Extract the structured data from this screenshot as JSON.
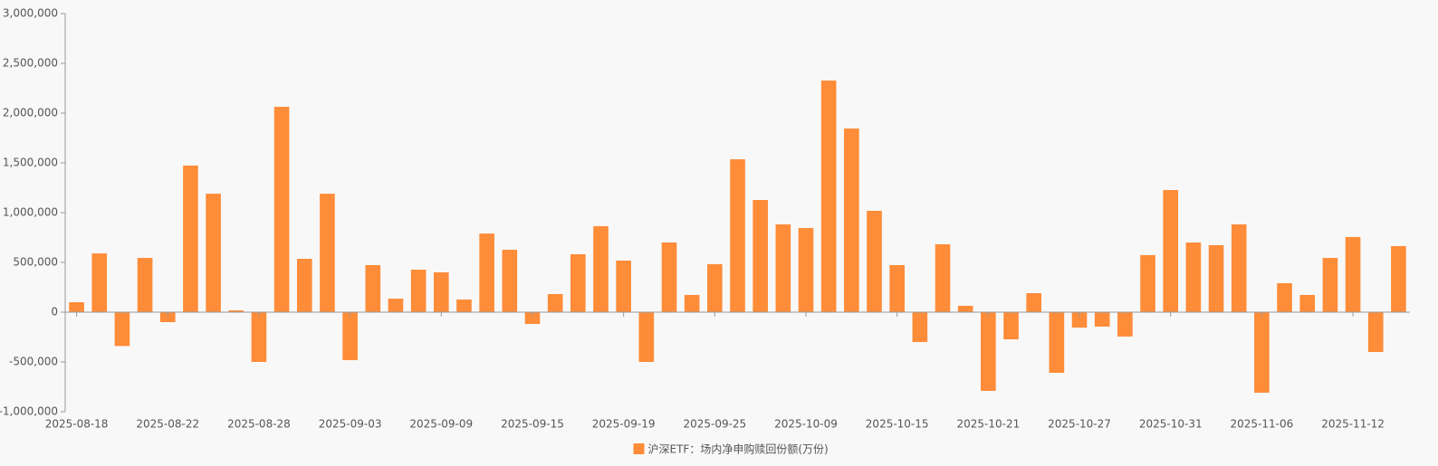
{
  "chart_data": {
    "type": "bar",
    "categories": [
      "2025-08-18",
      null,
      null,
      null,
      "2025-08-22",
      null,
      null,
      null,
      "2025-08-28",
      null,
      null,
      null,
      "2025-09-03",
      null,
      null,
      null,
      "2025-09-09",
      null,
      null,
      null,
      "2025-09-15",
      null,
      null,
      null,
      "2025-09-19",
      null,
      null,
      null,
      "2025-09-25",
      null,
      null,
      null,
      "2025-10-09",
      null,
      null,
      null,
      "2025-10-15",
      null,
      null,
      null,
      "2025-10-21",
      null,
      null,
      null,
      "2025-10-27",
      null,
      null,
      null,
      "2025-10-31",
      null,
      null,
      null,
      "2025-11-06",
      null,
      null,
      null,
      "2025-11-12",
      null,
      null
    ],
    "series": [
      {
        "name": "沪深ETF：场内净申购赎回份额(万份)",
        "color": "#ff8c38",
        "values": [
          100000,
          590000,
          -340000,
          545000,
          -100000,
          1473000,
          1190000,
          18000,
          -500000,
          2063000,
          536000,
          1190000,
          -482000,
          473000,
          136000,
          427000,
          400000,
          127000,
          790000,
          627000,
          -118000,
          182000,
          582000,
          864000,
          518000,
          -500000,
          700000,
          173000,
          482000,
          1536000,
          1127000,
          882000,
          845000,
          2327000,
          1845000,
          1018000,
          473000,
          -300000,
          682000,
          64000,
          -791000,
          -273000,
          191000,
          -609000,
          -155000,
          -145000,
          -245000,
          573000,
          1227000,
          700000,
          673000,
          882000,
          -809000,
          291000,
          173000,
          545000,
          755000,
          -400000,
          664000
        ]
      }
    ],
    "ylim": [
      -1000000,
      3000000
    ],
    "yticks": [
      {
        "value": -1000000,
        "label": "-1,000,000"
      },
      {
        "value": -500000,
        "label": "-500,000"
      },
      0,
      {
        "value": 500000,
        "label": "500,000"
      },
      {
        "value": 1000000,
        "label": "1,000,000"
      },
      {
        "value": 1500000,
        "label": "1,500,000"
      },
      {
        "value": 2000000,
        "label": "2,000,000"
      },
      {
        "value": 2500000,
        "label": "2,500,000"
      },
      {
        "value": 3000000,
        "label": "3,000,000"
      }
    ],
    "grid": false,
    "legend": "bottom"
  }
}
